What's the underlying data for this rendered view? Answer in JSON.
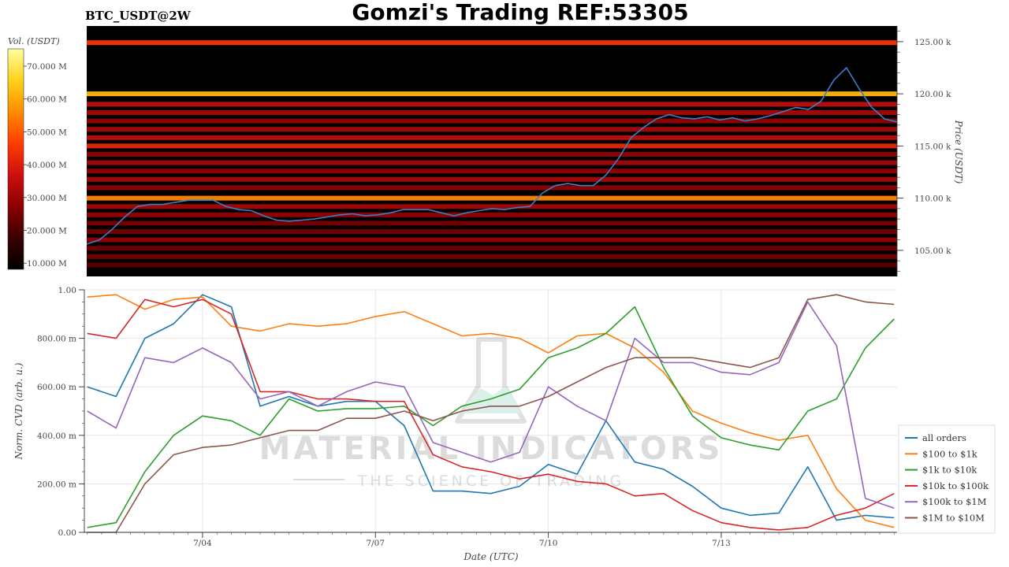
{
  "header": {
    "symbol": "BTC_USDT@2W",
    "title": "Gomzi's Trading REF:53305"
  },
  "colorbar": {
    "label": "Vol. (USDT)",
    "ticks": [
      "70.000 M",
      "60.000 M",
      "50.000 M",
      "40.000 M",
      "30.000 M",
      "20.000 M",
      "10.000 M"
    ],
    "colors": [
      "#000000",
      "#3a0000",
      "#8b0000",
      "#cc1010",
      "#ff3b00",
      "#ff8c00",
      "#ffd21a",
      "#ffffa0"
    ]
  },
  "watermark": {
    "brand": "MATERIAL INDICATORS",
    "tagline": "THE SCIENCE OF TRADING"
  },
  "chart_data": [
    {
      "type": "heatmap",
      "ylabel": "Price (USDT)",
      "ylim": [
        102500,
        126500
      ],
      "yticks": [
        "125.00 k",
        "120.00 k",
        "115.00 k",
        "110.00 k",
        "105.00 k"
      ],
      "ytick_values": [
        125000,
        120000,
        115000,
        110000,
        105000
      ],
      "price_line": {
        "color": "#3a7fc8",
        "x": [
          0,
          1,
          2,
          3,
          4,
          5,
          6,
          7,
          8,
          9,
          10,
          11,
          12,
          13,
          14,
          15,
          16,
          17,
          18,
          19,
          20,
          21,
          22,
          23,
          24,
          25,
          26,
          27,
          28,
          29,
          30,
          31,
          32,
          33,
          34,
          35,
          36,
          37,
          38,
          39,
          40,
          41,
          42,
          43,
          44,
          45,
          46,
          47,
          48,
          49,
          50,
          51,
          52,
          53,
          54,
          55,
          56,
          57,
          58,
          59,
          60,
          61,
          62,
          63,
          64
        ],
        "values": [
          105600,
          106000,
          107000,
          108200,
          109200,
          109400,
          109400,
          109600,
          109800,
          109800,
          109800,
          109200,
          108900,
          108800,
          108300,
          107900,
          107800,
          107900,
          108000,
          108200,
          108400,
          108500,
          108300,
          108400,
          108600,
          108900,
          108900,
          108900,
          108600,
          108300,
          108600,
          108800,
          109000,
          108900,
          109100,
          109200,
          110500,
          111200,
          111400,
          111200,
          111200,
          112200,
          113800,
          115800,
          116800,
          117600,
          118000,
          117700,
          117600,
          117800,
          117500,
          117700,
          117400,
          117600,
          117900,
          118300,
          118700,
          118500,
          119300,
          121300,
          122500,
          120500,
          118700,
          117600,
          117300
        ]
      },
      "bands": [
        {
          "price": 124900,
          "level": 0.55
        },
        {
          "price": 120000,
          "level": 0.8
        },
        {
          "price": 119000,
          "level": 0.4
        },
        {
          "price": 118200,
          "level": 0.35
        },
        {
          "price": 117400,
          "level": 0.3
        },
        {
          "price": 116600,
          "level": 0.35
        },
        {
          "price": 115800,
          "level": 0.4
        },
        {
          "price": 115000,
          "level": 0.5
        },
        {
          "price": 114200,
          "level": 0.3
        },
        {
          "price": 113400,
          "level": 0.35
        },
        {
          "price": 112600,
          "level": 0.3
        },
        {
          "price": 111800,
          "level": 0.35
        },
        {
          "price": 111000,
          "level": 0.3
        },
        {
          "price": 110000,
          "level": 0.7
        },
        {
          "price": 109200,
          "level": 0.35
        },
        {
          "price": 108400,
          "level": 0.3
        },
        {
          "price": 107600,
          "level": 0.25
        },
        {
          "price": 106800,
          "level": 0.25
        },
        {
          "price": 106000,
          "level": 0.3
        },
        {
          "price": 105200,
          "level": 0.25
        },
        {
          "price": 104400,
          "level": 0.25
        },
        {
          "price": 103600,
          "level": 0.2
        }
      ]
    },
    {
      "type": "line",
      "xlabel": "Date (UTC)",
      "ylabel": "Norm. CVD (arb. u.)",
      "ylim": [
        0,
        1
      ],
      "yticks": [
        "1.00",
        "800.00 m",
        "600.00 m",
        "400.00 m",
        "200.00 m",
        "0.00"
      ],
      "ytick_values": [
        1,
        0.8,
        0.6,
        0.4,
        0.2,
        0
      ],
      "xticks": [
        "7/04",
        "7/07",
        "7/10",
        "7/13"
      ],
      "xtick_days": [
        3,
        6,
        9,
        12
      ],
      "xrange_days": [
        0.95,
        15.05
      ],
      "x_days": [
        1,
        1.5,
        2,
        2.5,
        3,
        3.5,
        4,
        4.5,
        5,
        5.5,
        6,
        6.5,
        7,
        7.5,
        8,
        8.5,
        9,
        9.5,
        10,
        10.5,
        11,
        11.5,
        12,
        12.5,
        13,
        13.5,
        14,
        14.5,
        15
      ],
      "series": [
        {
          "name": "all orders",
          "color": "#1f77b4",
          "values": [
            0.6,
            0.56,
            0.8,
            0.86,
            0.98,
            0.93,
            0.52,
            0.56,
            0.52,
            0.54,
            0.54,
            0.44,
            0.17,
            0.17,
            0.16,
            0.19,
            0.28,
            0.24,
            0.46,
            0.29,
            0.26,
            0.19,
            0.1,
            0.07,
            0.08,
            0.27,
            0.05,
            0.07,
            0.06
          ]
        },
        {
          "name": "$100 to $1k",
          "color": "#ff7f0e",
          "values": [
            0.97,
            0.98,
            0.92,
            0.96,
            0.97,
            0.85,
            0.83,
            0.86,
            0.85,
            0.86,
            0.89,
            0.91,
            0.86,
            0.81,
            0.82,
            0.8,
            0.74,
            0.81,
            0.82,
            0.76,
            0.66,
            0.5,
            0.45,
            0.41,
            0.38,
            0.4,
            0.18,
            0.05,
            0.02
          ]
        },
        {
          "name": "$1k to $10k",
          "color": "#2ca02c",
          "values": [
            0.02,
            0.04,
            0.25,
            0.4,
            0.48,
            0.46,
            0.4,
            0.55,
            0.5,
            0.51,
            0.51,
            0.52,
            0.44,
            0.52,
            0.55,
            0.59,
            0.72,
            0.76,
            0.82,
            0.93,
            0.68,
            0.48,
            0.39,
            0.36,
            0.34,
            0.5,
            0.55,
            0.76,
            0.88
          ]
        },
        {
          "name": "$10k to $100k",
          "color": "#d62728",
          "values": [
            0.82,
            0.8,
            0.96,
            0.93,
            0.96,
            0.9,
            0.58,
            0.58,
            0.55,
            0.55,
            0.54,
            0.54,
            0.32,
            0.27,
            0.25,
            0.22,
            0.24,
            0.21,
            0.2,
            0.15,
            0.16,
            0.09,
            0.04,
            0.02,
            0.01,
            0.02,
            0.07,
            0.1,
            0.16
          ]
        },
        {
          "name": "$100k to $1M",
          "color": "#9467bd",
          "values": [
            0.5,
            0.43,
            0.72,
            0.7,
            0.76,
            0.7,
            0.55,
            0.58,
            0.52,
            0.58,
            0.62,
            0.6,
            0.37,
            0.33,
            0.29,
            0.33,
            0.6,
            0.52,
            0.46,
            0.8,
            0.7,
            0.7,
            0.66,
            0.65,
            0.7,
            0.95,
            0.77,
            0.14,
            0.1
          ]
        },
        {
          "name": "$1M to $10M",
          "color": "#8c564b",
          "values": [
            0.0,
            0.0,
            0.2,
            0.32,
            0.35,
            0.36,
            0.39,
            0.42,
            0.42,
            0.47,
            0.47,
            0.5,
            0.46,
            0.5,
            0.52,
            0.52,
            0.56,
            0.62,
            0.68,
            0.72,
            0.72,
            0.72,
            0.7,
            0.68,
            0.72,
            0.96,
            0.98,
            0.95,
            0.94
          ]
        }
      ]
    }
  ]
}
